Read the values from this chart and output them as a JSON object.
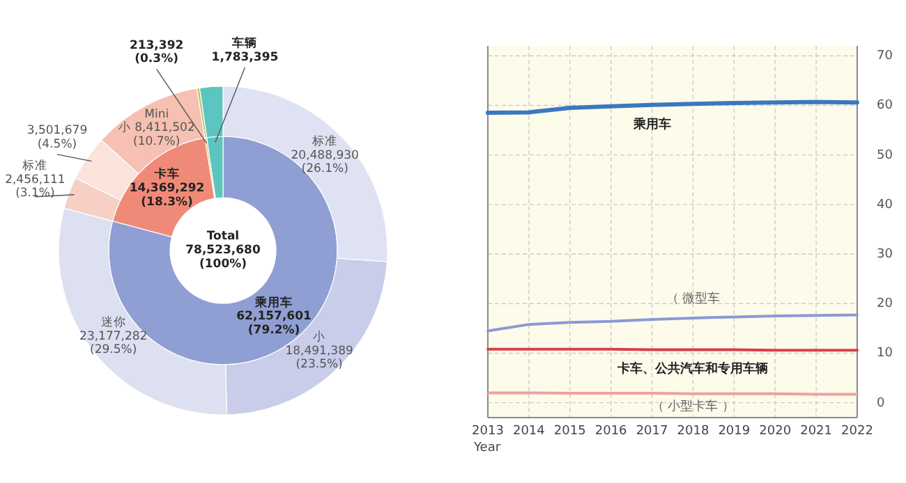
{
  "chart_data": [
    {
      "type": "donut",
      "annotations": [
        "Total\n78,523,680\n(100%)"
      ],
      "series": [
        {
          "values": [
            62157601,
            14369292,
            213392,
            1783395
          ],
          "colors": [
            "#8f9fd3",
            "#f08a78",
            "#c9c25e",
            "#5cc5c0"
          ],
          "value_labels": [
            "乘用车\n62,157,601\n(79.2%)",
            "卡车\n14,369,292\n(18.3%)",
            "213,392\n(0.3%)",
            "车辆\n1,783,395"
          ]
        },
        {
          "values": [
            20488930,
            18491389,
            23177282,
            2456111,
            3501679,
            8411502,
            213392,
            1783395
          ],
          "colors": [
            "#dfe2f2",
            "#c9cdea",
            "#dde0f1",
            "#f8cfc4",
            "#fbe3dc",
            "#f6c0b2",
            "#c9c25e",
            "#5cc5c0"
          ],
          "value_labels": [
            "标准\n20,488,930\n(26.1%)",
            "小\n18,491,389\n(23.5%)",
            "迷你\n23,177,282\n(29.5%)",
            "标准\n2,456,111\n(3.1%)",
            "3,501,679\n(4.5%)",
            "Mini\n小 8,411,502\n(10.7%)",
            null,
            null
          ]
        }
      ]
    },
    {
      "type": "line",
      "xlabel": "Year",
      "x": [
        2013,
        2014,
        2015,
        2016,
        2017,
        2018,
        2019,
        2020,
        2021,
        2022
      ],
      "xlim": [
        2013,
        2022
      ],
      "xticks": [
        2013,
        2014,
        2015,
        2016,
        2017,
        2018,
        2019,
        2020,
        2021,
        2022
      ],
      "ylim": [
        -3,
        72
      ],
      "yticks": [
        0,
        10,
        20,
        30,
        40,
        50,
        60,
        70
      ],
      "grid": true,
      "series": [
        {
          "name": "乘用车",
          "color": "#3a78c0",
          "values": [
            58.5,
            58.6,
            59.5,
            59.8,
            60.1,
            60.3,
            60.5,
            60.6,
            60.7,
            60.6
          ]
        },
        {
          "name": "（ 微型车",
          "color": "#8a9ad6",
          "values": [
            14.5,
            15.8,
            16.2,
            16.4,
            16.8,
            17.1,
            17.3,
            17.5,
            17.6,
            17.7
          ]
        },
        {
          "name": "卡车、公共汽车和专用车辆",
          "color": "#d8404a",
          "values": [
            10.8,
            10.8,
            10.8,
            10.8,
            10.7,
            10.7,
            10.7,
            10.6,
            10.6,
            10.6
          ]
        },
        {
          "name": "（ 小型卡车 ）",
          "color": "#f0a0a0",
          "values": [
            2.0,
            2.0,
            1.9,
            1.9,
            1.9,
            1.8,
            1.8,
            1.8,
            1.7,
            1.7
          ]
        }
      ]
    }
  ]
}
